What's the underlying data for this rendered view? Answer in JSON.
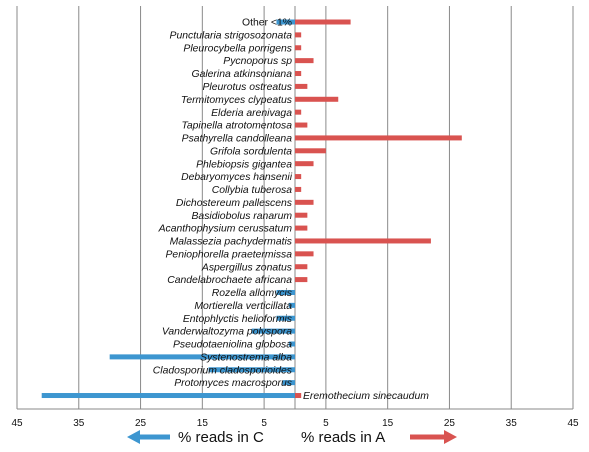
{
  "chart_data": {
    "type": "bar",
    "orientation": "horizontal-diverging",
    "categories": [
      "Other <1%",
      "Punctularia strigosozonata",
      "Pleurocybella porrigens",
      "Pycnoporus sp",
      "Galerina atkinsoniana",
      "Pleurotus ostreatus",
      "Termitomyces clypeatus",
      "Elderia arenivaga",
      "Tapinella atrotomentosa",
      "Psathyrella candolleana",
      "Grifola sordulenta",
      "Phlebiopsis gigantea",
      "Debaryomyces hansenii",
      "Collybia tuberosa",
      "Dichostereum pallescens",
      "Basidiobolus ranarum",
      "Acanthophysium cerussatum",
      "Malassezia pachydermatis",
      "Peniophorella praetermissa",
      "Aspergillus zonatus",
      "Candelabrochaete africana",
      "Rozella allomycis",
      "Mortierella verticillata",
      "Entophlyctis helioformis",
      "Vanderwaltozyma polyspora",
      "Pseudotaeniolina globosa",
      "Systenostrema alba",
      "Cladosporium cladosporioides",
      "Protomyces macrosporus",
      "Eremothecium sinecaudum"
    ],
    "series": [
      {
        "name": "% reads in C",
        "color": "#3d96d0",
        "values": [
          3,
          0,
          0,
          0,
          0,
          0,
          0,
          0,
          0,
          0,
          0,
          0,
          0,
          0,
          0,
          0,
          0,
          0,
          0,
          0,
          0,
          3,
          1,
          3,
          7,
          1,
          30,
          14,
          2,
          41
        ]
      },
      {
        "name": "% reads in A",
        "color": "#d95350",
        "values": [
          9,
          1,
          1,
          3,
          1,
          2,
          7,
          1,
          2,
          27,
          5,
          3,
          1,
          1,
          3,
          2,
          2,
          22,
          3,
          2,
          2,
          0,
          0,
          0,
          0,
          0,
          0,
          0,
          0,
          1
        ]
      }
    ],
    "x_ticks": [
      "45",
      "35",
      "25",
      "15",
      "5",
      "5",
      "15",
      "25",
      "35",
      "45"
    ],
    "xlim": [
      -45,
      45
    ],
    "grid": true,
    "legend": {
      "left": "% reads in C",
      "right": "% reads in A",
      "placement": "bottom-center"
    }
  }
}
